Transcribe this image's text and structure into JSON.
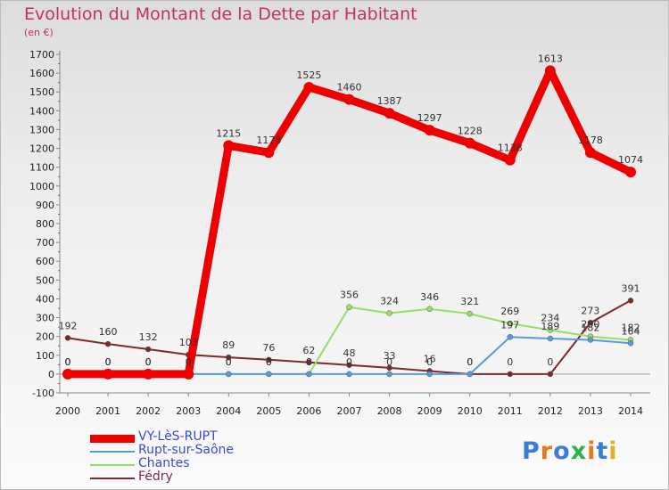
{
  "title": "Evolution du Montant de la Dette par Habitant",
  "subtitle": "(en €)",
  "logo": "Proxiti",
  "chart_data": {
    "type": "line",
    "title": "Evolution du Montant de la Dette par Habitant",
    "ylabel": "(en €)",
    "xlabel": "",
    "categories": [
      "2000",
      "2001",
      "2002",
      "2003",
      "2004",
      "2005",
      "2006",
      "2007",
      "2008",
      "2009",
      "2010",
      "2011",
      "2012",
      "2013",
      "2014"
    ],
    "ylim": [
      -100,
      1700
    ],
    "yticks": [
      -100,
      0,
      100,
      200,
      300,
      400,
      500,
      600,
      700,
      800,
      900,
      1000,
      1100,
      1200,
      1300,
      1400,
      1500,
      1600,
      1700
    ],
    "grid": false,
    "legend_position": "bottom-left",
    "series": [
      {
        "name": "VY-LèS-RUPT",
        "color": "#ee0000",
        "values": [
          0,
          0,
          0,
          0,
          1215,
          1178,
          1525,
          1460,
          1387,
          1297,
          1228,
          1138,
          1613,
          1178,
          1074
        ],
        "labels": [
          "0",
          "0",
          "0",
          "0",
          "1215",
          "1178",
          "1525",
          "1460",
          "1387",
          "1297",
          "1228",
          "1138",
          "1613",
          "1178",
          "1074"
        ]
      },
      {
        "name": "Rupt-sur-Saône",
        "color": "#5b9bd5",
        "values": [
          0,
          0,
          0,
          0,
          0,
          0,
          0,
          0,
          0,
          0,
          0,
          197,
          189,
          182,
          164
        ],
        "labels": [
          "0",
          "0",
          "0",
          "0",
          "0",
          "0",
          "0",
          "0",
          "0",
          "0",
          "0",
          "197",
          "189",
          "182",
          "164"
        ]
      },
      {
        "name": "Chantes",
        "color": "#99dd66",
        "values": [
          0,
          0,
          0,
          0,
          0,
          0,
          0,
          356,
          324,
          346,
          321,
          269,
          234,
          200,
          182
        ],
        "labels": [
          "0",
          "0",
          "0",
          "0",
          "0",
          "0",
          "0",
          "356",
          "324",
          "346",
          "321",
          "269",
          "234",
          "200",
          "182"
        ]
      },
      {
        "name": "Fédry",
        "color": "#7a2a2a",
        "values": [
          192,
          160,
          132,
          103,
          89,
          76,
          62,
          48,
          33,
          16,
          0,
          0,
          0,
          273,
          391
        ],
        "labels": [
          "192",
          "160",
          "132",
          "103",
          "89",
          "76",
          "62",
          "48",
          "33",
          "16",
          "0",
          "0",
          "0",
          "273",
          "391"
        ]
      }
    ]
  }
}
